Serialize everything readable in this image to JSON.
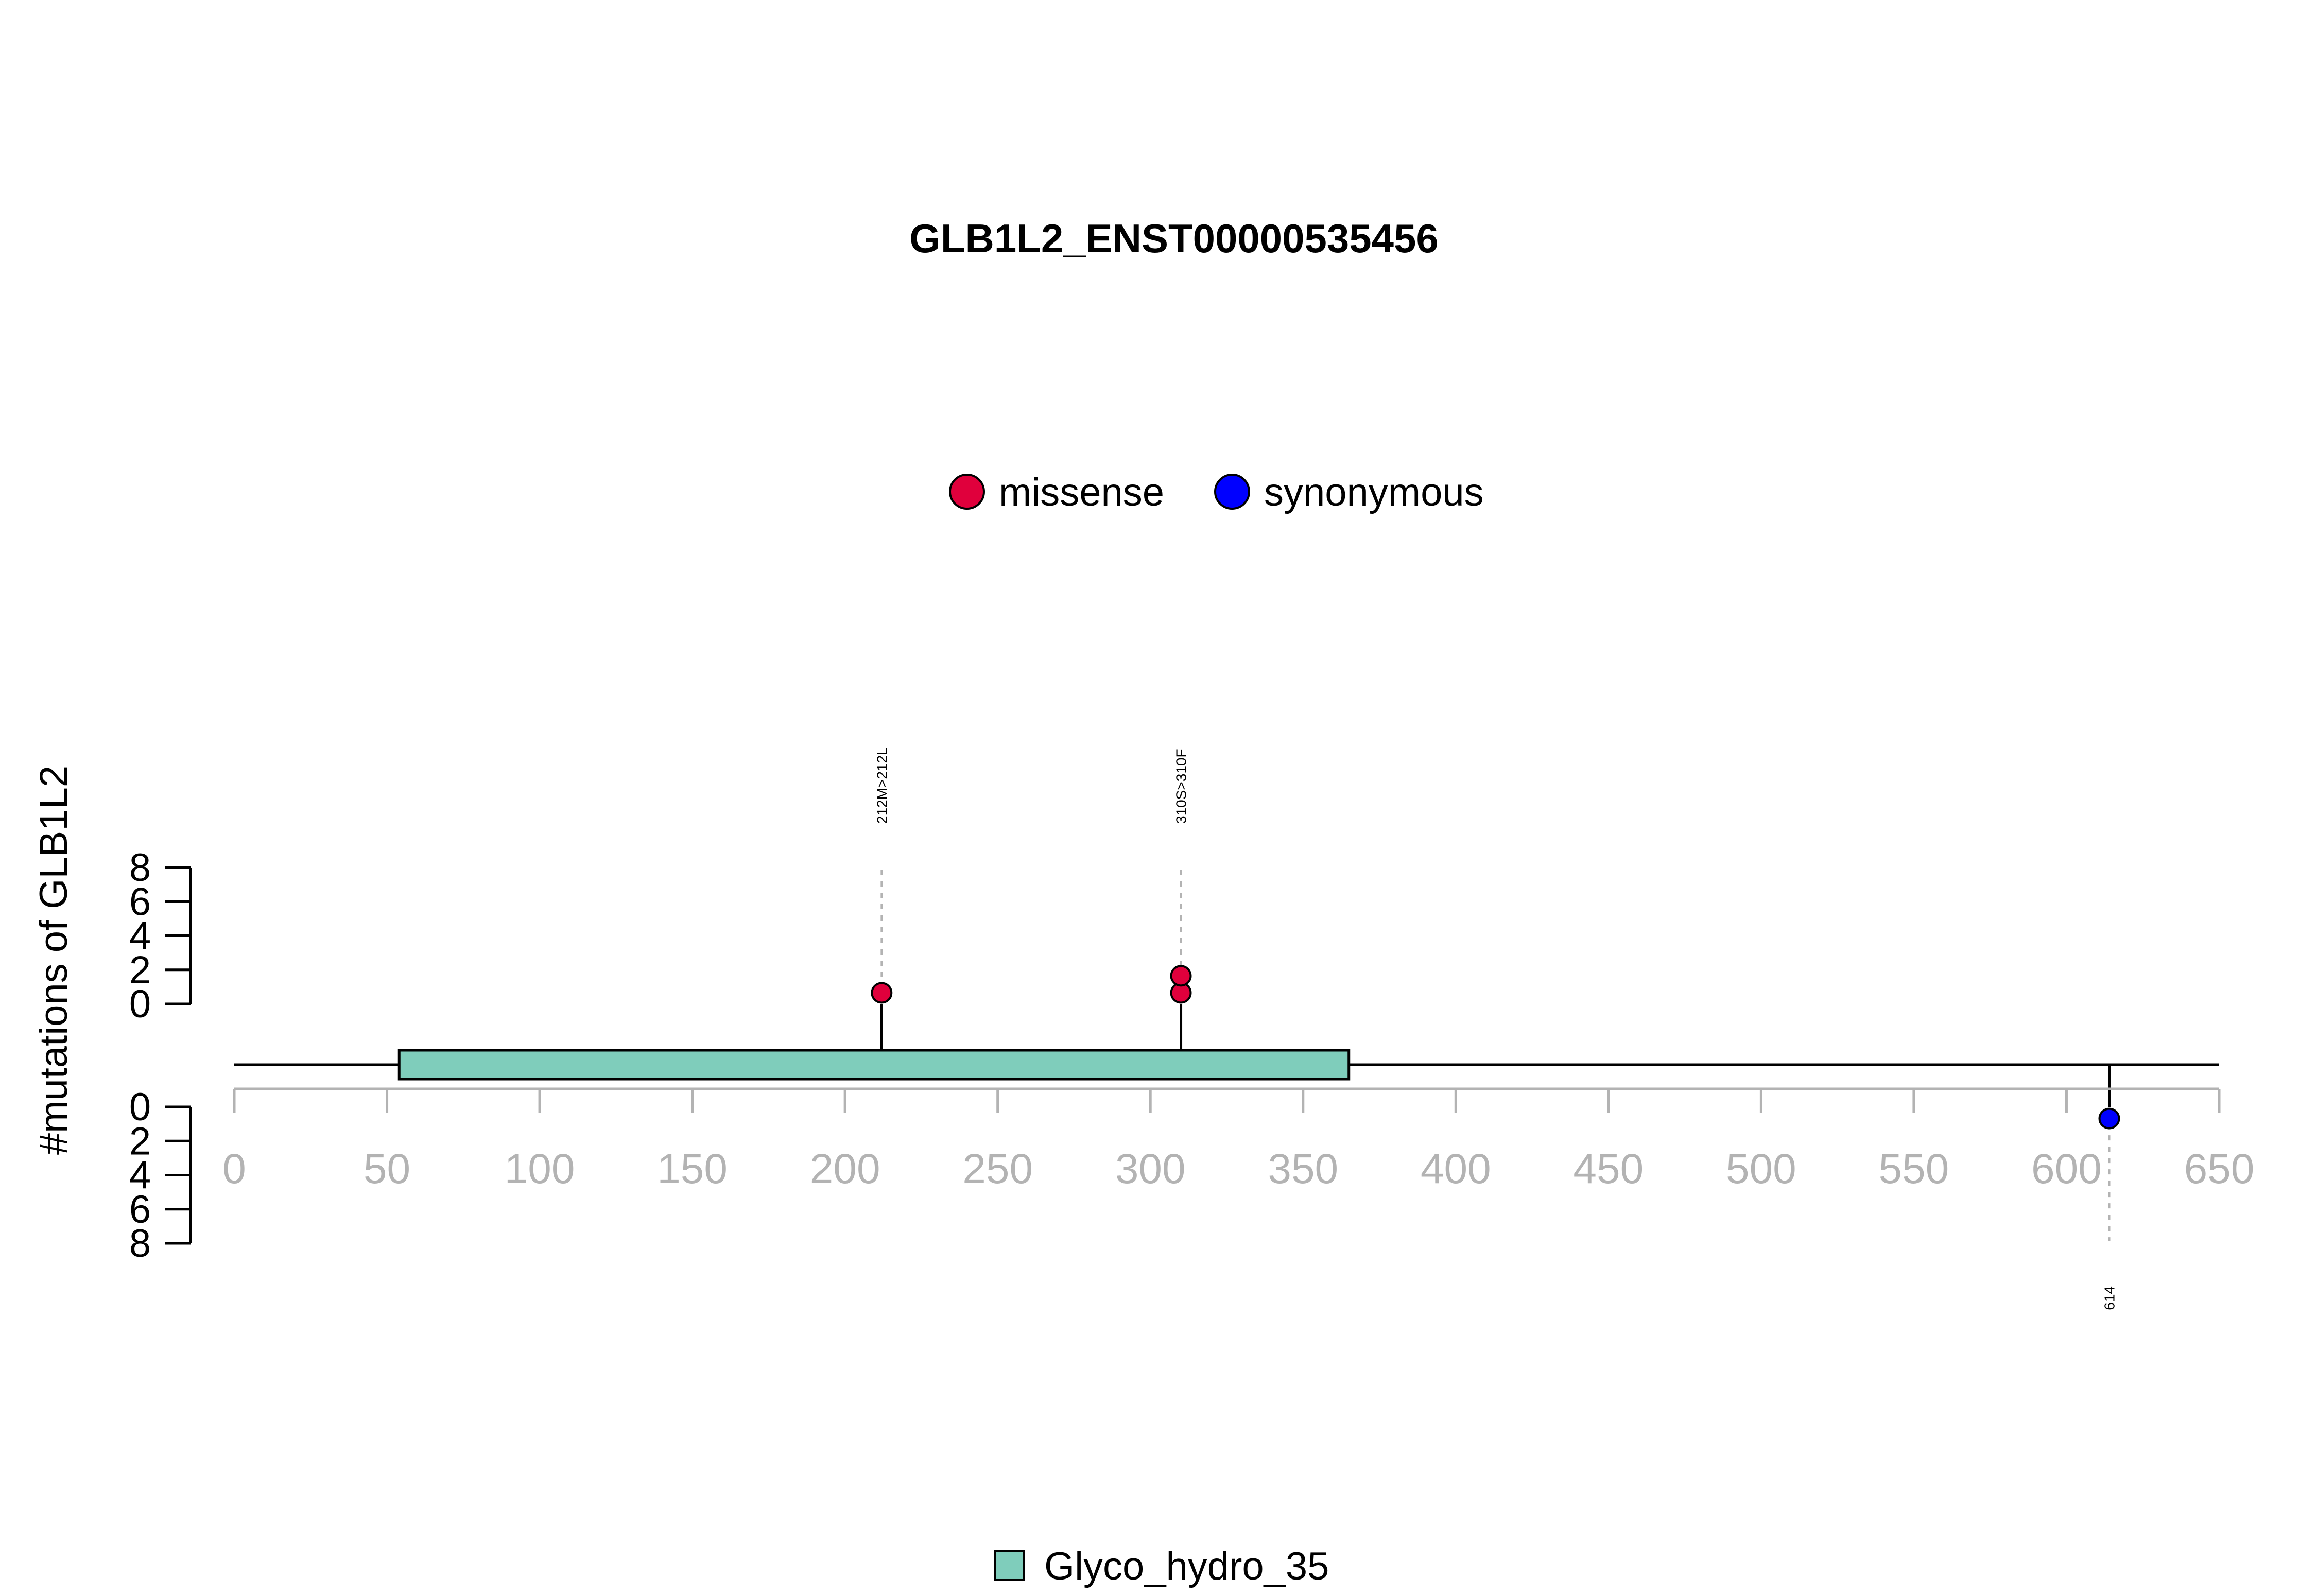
{
  "title": "GLB1L2_ENST00000535456",
  "legend_top": [
    {
      "label": "missense",
      "color": "#e0003c"
    },
    {
      "label": "synonymous",
      "color": "#0000ff"
    }
  ],
  "legend_bottom": [
    {
      "label": "Glyco_hydro_35",
      "color": "#7fcdbb"
    }
  ],
  "ylabel": "#mutations of GLB1L2",
  "chart_data": {
    "type": "lollipop",
    "title": "GLB1L2_ENST00000535456",
    "ylabel": "#mutations of GLB1L2",
    "xlim": [
      0,
      650
    ],
    "x_ticks": [
      0,
      50,
      100,
      150,
      200,
      250,
      300,
      350,
      400,
      450,
      500,
      550,
      600,
      650
    ],
    "y_ticks_top": [
      0,
      2,
      4,
      6,
      8
    ],
    "y_ticks_bottom": [
      0,
      2,
      4,
      6,
      8
    ],
    "protein_length": 650,
    "domains": [
      {
        "name": "Glyco_hydro_35",
        "start": 54,
        "end": 365,
        "color": "#7fcdbb"
      }
    ],
    "mutations": [
      {
        "position": 212,
        "count": 1,
        "type": "missense",
        "side": "top",
        "label": "212M>212L"
      },
      {
        "position": 310,
        "count": 2,
        "type": "missense",
        "side": "top",
        "label": "310S>310F"
      },
      {
        "position": 614,
        "count": 1,
        "type": "synonymous",
        "side": "bottom",
        "label": "614"
      }
    ]
  }
}
